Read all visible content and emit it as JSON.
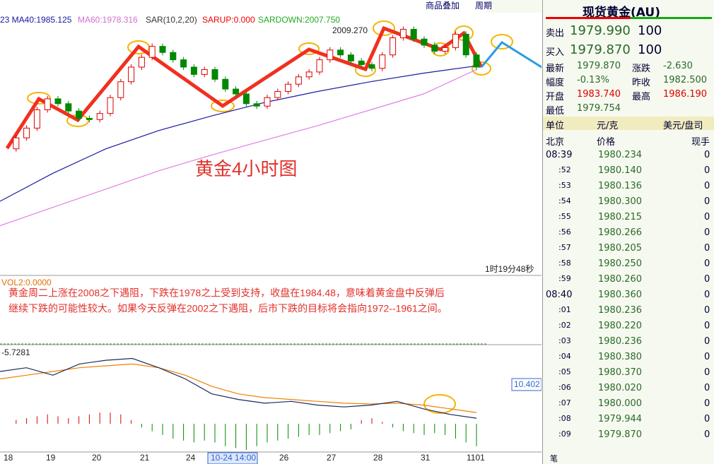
{
  "header": {
    "indicator_text": "23 MA40:1985.125",
    "ma60_text": "MA60:1978.316",
    "sar_text": "SAR(10,2,20)",
    "sarup_text": "SARUP:0.000",
    "sardown_text": "SARDOWN:2007.750",
    "buttons": [
      "商品叠加",
      "周期"
    ]
  },
  "price_chart": {
    "ylim": [
      1815,
      2035
    ],
    "closes": [
      1913,
      1922,
      1930,
      1945,
      1954,
      1950,
      1944,
      1938,
      1937,
      1942,
      1955,
      1968,
      1980,
      1988,
      1997,
      1992,
      1986,
      1980,
      1974,
      1978,
      1970,
      1962,
      1958,
      1950,
      1948,
      1955,
      1960,
      1966,
      1972,
      1976,
      1986,
      1994,
      1990,
      1985,
      1982,
      1979,
      1990,
      2004,
      2011,
      2003,
      1998,
      1993,
      1996,
      2007,
      1990,
      1980
    ],
    "ma40": [
      1870,
      1893,
      1913,
      1928,
      1940,
      1951,
      1960,
      1968,
      1975,
      1981
    ],
    "ma60": [
      1850,
      1865,
      1880,
      1895,
      1908,
      1920,
      1932,
      1945,
      1958,
      1978
    ],
    "high_label": "2009.270",
    "title": "黄金4小时图",
    "timer": "1时19分48秒"
  },
  "volume": {
    "label": "VOL2:0.0000",
    "comment": [
      "黄金周二上涨在2008之下遇阻，下跌在1978之上受到支持，收盘在1984.48，意味着黄金盘中反弹后",
      "继续下跌的可能性较大。如果今天反弹在2002之下遇阻，后市下跌的目标将会指向1972--1961之间。"
    ]
  },
  "macd": {
    "ylim": [
      -7.56,
      20.8
    ],
    "top_label": "-5.7281",
    "value_label": "10.402",
    "dif": [
      14,
      15,
      13,
      16,
      17,
      17.5,
      15,
      12,
      8,
      6.5,
      5.5,
      6,
      5,
      4.5,
      5,
      6,
      4,
      2.5,
      1.5
    ],
    "dea": [
      12,
      13,
      14,
      15,
      15.5,
      16,
      15,
      13,
      10,
      8,
      7,
      6.5,
      6,
      5.5,
      5.3,
      5.5,
      5,
      4,
      3
    ],
    "hist": [
      0,
      1,
      1.5,
      2,
      2.5,
      2,
      1.5,
      2,
      2.5,
      3,
      3,
      2.5,
      1,
      -1,
      -2,
      -3,
      -4,
      -4.5,
      -5,
      -4.5,
      -5,
      -6,
      -6.5,
      -7,
      -6,
      -5,
      -4.5,
      -4,
      -3.5,
      -3,
      -3,
      -2.5,
      -2,
      -1.5,
      1,
      1.5,
      0.5,
      -1,
      -2,
      -2.5,
      -3,
      -2.5,
      -3,
      -4,
      -5,
      -6
    ]
  },
  "x_axis": {
    "labels": [
      "18",
      "19",
      "20",
      "21",
      "24",
      "26",
      "27",
      "28",
      "31",
      "1101"
    ],
    "cursor": "10-24 14:00"
  },
  "quote": {
    "title": "现货黄金(AU)",
    "sell_label": "卖出",
    "sell_price": "1979.990",
    "sell_vol": "100",
    "buy_label": "买入",
    "buy_price": "1979.870",
    "buy_vol": "100",
    "fields": [
      [
        "最新",
        "1979.870",
        "涨跌",
        "-2.630"
      ],
      [
        "幅度",
        "-0.13%",
        "昨收",
        "1982.500"
      ],
      [
        "开盘",
        "1983.740",
        "最高",
        "1986.190"
      ],
      [
        "最低",
        "1979.754",
        "",
        ""
      ]
    ],
    "unit_label": "单位",
    "unit": "元/克",
    "unit2": "美元/盘司",
    "col_headers": [
      "北京",
      "价格",
      "现手"
    ],
    "ticks": [
      [
        "08:39",
        "1980.234",
        "0"
      ],
      [
        ":52",
        "1980.140",
        "0"
      ],
      [
        ":53",
        "1980.136",
        "0"
      ],
      [
        ":54",
        "1980.300",
        "0"
      ],
      [
        ":55",
        "1980.215",
        "0"
      ],
      [
        ":56",
        "1980.266",
        "0"
      ],
      [
        ":57",
        "1980.205",
        "0"
      ],
      [
        ":58",
        "1980.250",
        "0"
      ],
      [
        ":59",
        "1980.260",
        "0"
      ],
      [
        "08:40",
        "1980.360",
        "0"
      ],
      [
        ":01",
        "1980.236",
        "0"
      ],
      [
        ":02",
        "1980.220",
        "0"
      ],
      [
        ":03",
        "1980.236",
        "0"
      ],
      [
        ":04",
        "1980.380",
        "0"
      ],
      [
        ":05",
        "1980.370",
        "0"
      ],
      [
        ":06",
        "1980.020",
        "0"
      ],
      [
        ":07",
        "1980.000",
        "0"
      ],
      [
        ":08",
        "1979.944",
        "0"
      ],
      [
        ":09",
        "1979.870",
        "0"
      ]
    ],
    "footer": "笔"
  }
}
